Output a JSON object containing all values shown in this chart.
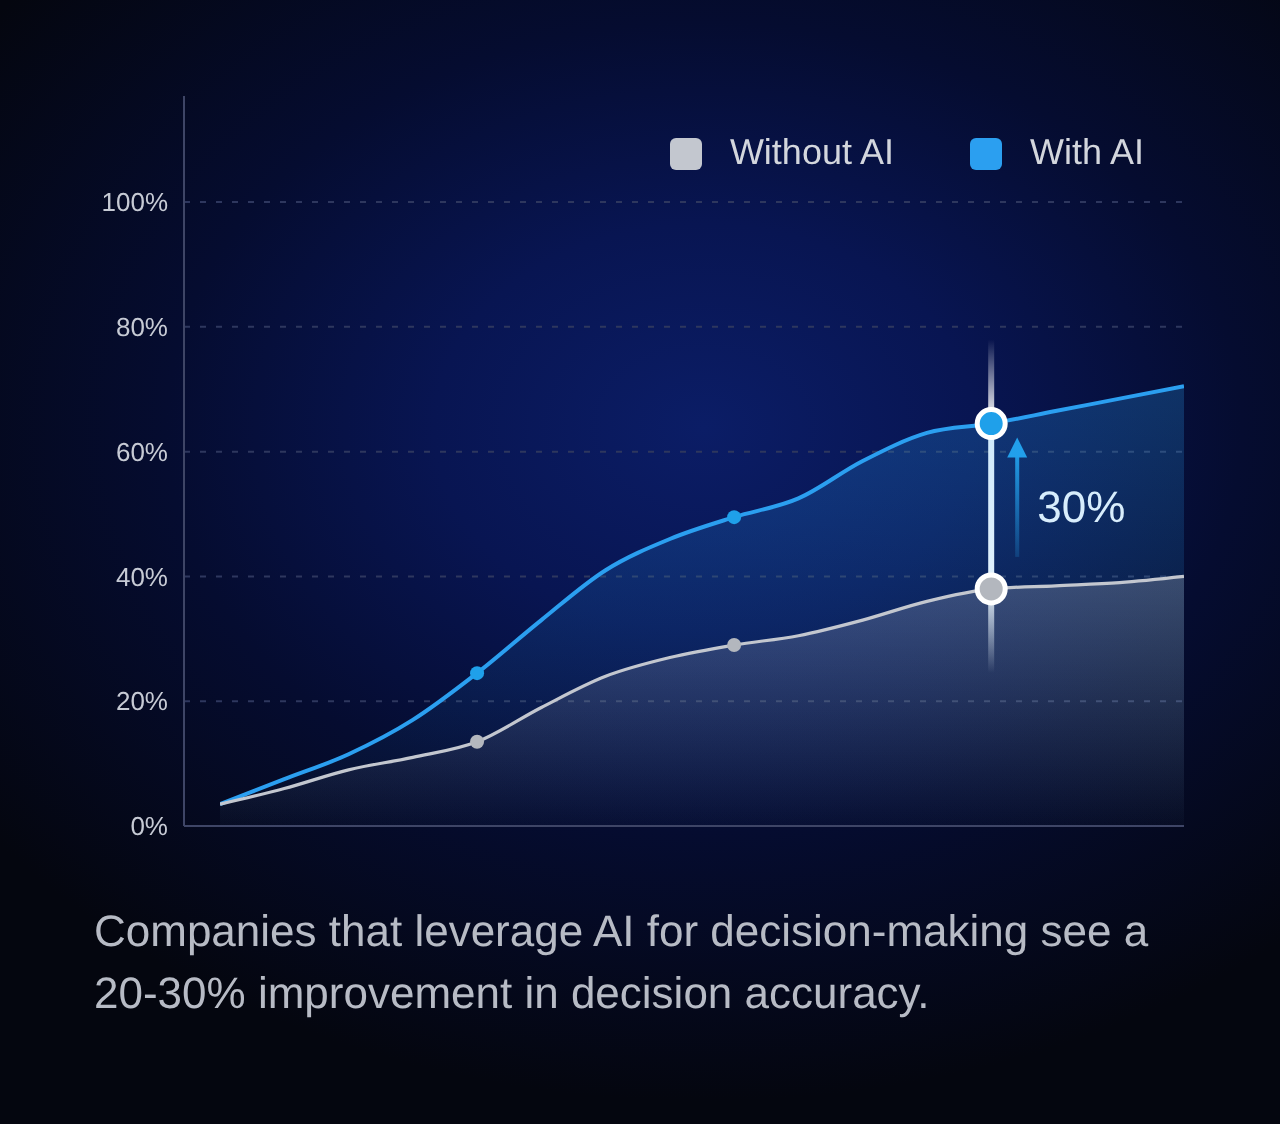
{
  "chart_data": {
    "type": "area",
    "categories": [
      null,
      null,
      null,
      null,
      null,
      null,
      null,
      null,
      null,
      null,
      null,
      null,
      null,
      null,
      null,
      null
    ],
    "series": [
      {
        "name": "Without AI",
        "color": "#c3c7cf",
        "values": [
          3.5,
          6,
          9,
          11,
          13.5,
          19,
          24,
          27,
          29,
          30.5,
          33,
          36,
          38,
          38.5,
          39,
          40
        ]
      },
      {
        "name": "With AI",
        "color": "#2b9ff0",
        "values": [
          3.5,
          7.5,
          11.5,
          17,
          24.5,
          33,
          41,
          46,
          49.5,
          52.5,
          58.5,
          63,
          64.5,
          66.5,
          68.5,
          70.5
        ]
      },
      {
        "type": "scatter",
        "color": "#b3b7be",
        "marker": "circle",
        "values": [
          null,
          null,
          null,
          null,
          13.5,
          null,
          null,
          null,
          29,
          null,
          null,
          null,
          null,
          null,
          null,
          null
        ]
      },
      {
        "type": "scatter",
        "color": "#1fa0ea",
        "marker": "circle",
        "values": [
          null,
          null,
          null,
          null,
          24.5,
          null,
          null,
          null,
          49.5,
          null,
          null,
          null,
          null,
          null,
          null,
          null
        ]
      },
      {
        "type": "scatter",
        "color": "#b3b7be",
        "marker": "circle",
        "values": [
          null,
          null,
          null,
          null,
          null,
          null,
          null,
          null,
          null,
          null,
          null,
          null,
          38,
          null,
          null,
          null
        ]
      },
      {
        "type": "scatter",
        "color": "#1fa0ea",
        "marker": "circle",
        "values": [
          null,
          null,
          null,
          null,
          null,
          null,
          null,
          null,
          null,
          null,
          null,
          null,
          64.5,
          null,
          null,
          null
        ]
      }
    ],
    "ylim": [
      0,
      117
    ],
    "yticks": [
      {
        "value": 0,
        "label": "0%"
      },
      {
        "value": 20,
        "label": "20%"
      },
      {
        "value": 40,
        "label": "40%"
      },
      {
        "value": 60,
        "label": "60%"
      },
      {
        "value": 80,
        "label": "80%"
      },
      {
        "value": 100,
        "label": "100%"
      }
    ],
    "grid": "y",
    "legend": "top right",
    "annotations": [
      "30%",
      "Companies that leverage AI for decision-making see a 20-30% improvement in decision accuracy."
    ]
  }
}
